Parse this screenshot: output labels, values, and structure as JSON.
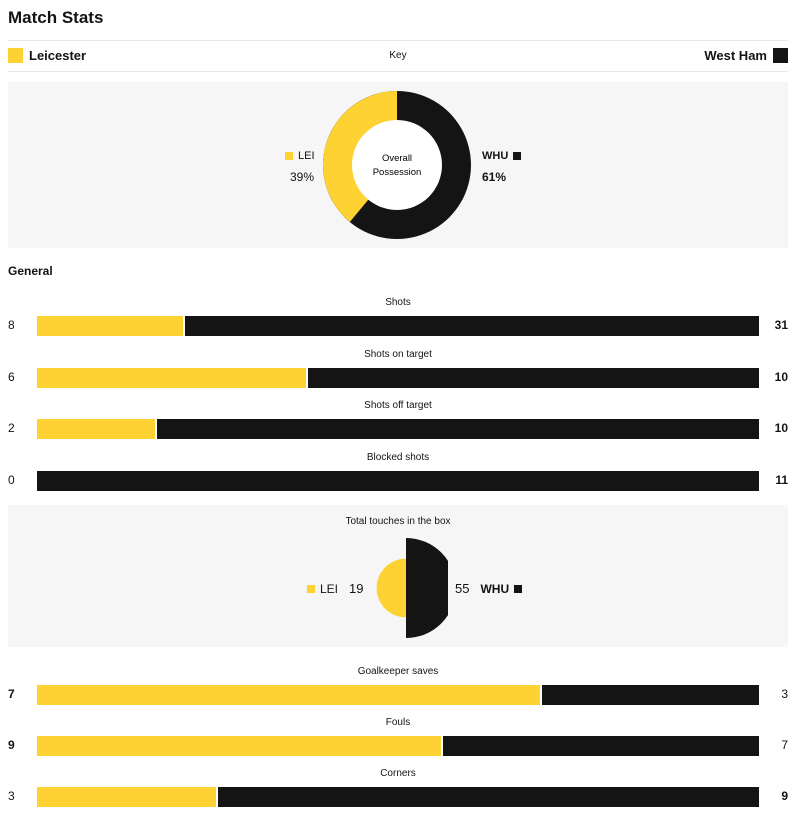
{
  "title": "Match Stats",
  "key": {
    "left_team": "Leicester",
    "right_team": "West Ham",
    "label": "Key"
  },
  "colors": {
    "home": "#fdd232",
    "away": "#141414"
  },
  "possession": {
    "center_line1": "Overall",
    "center_line2": "Possession",
    "home_abbr": "LEI",
    "away_abbr": "WHU",
    "home_pct_text": "39%",
    "away_pct_text": "61%",
    "home_value": 39,
    "away_value": 61
  },
  "general_heading": "General",
  "stats_top": [
    {
      "label": "Shots",
      "home": "8",
      "away": "31",
      "home_bold": false,
      "away_bold": true
    },
    {
      "label": "Shots on target",
      "home": "6",
      "away": "10",
      "home_bold": false,
      "away_bold": true
    },
    {
      "label": "Shots off target",
      "home": "2",
      "away": "10",
      "home_bold": false,
      "away_bold": true
    },
    {
      "label": "Blocked shots",
      "home": "0",
      "away": "11",
      "home_bold": false,
      "away_bold": true
    }
  ],
  "touches": {
    "label": "Total touches in the box",
    "home_abbr": "LEI",
    "away_abbr": "WHU",
    "home": "19",
    "away": "55"
  },
  "stats_bottom": [
    {
      "label": "Goalkeeper saves",
      "home": "7",
      "away": "3",
      "home_bold": true,
      "away_bold": false
    },
    {
      "label": "Fouls",
      "home": "9",
      "away": "7",
      "home_bold": true,
      "away_bold": false
    },
    {
      "label": "Corners",
      "home": "3",
      "away": "9",
      "home_bold": false,
      "away_bold": true
    }
  ]
}
